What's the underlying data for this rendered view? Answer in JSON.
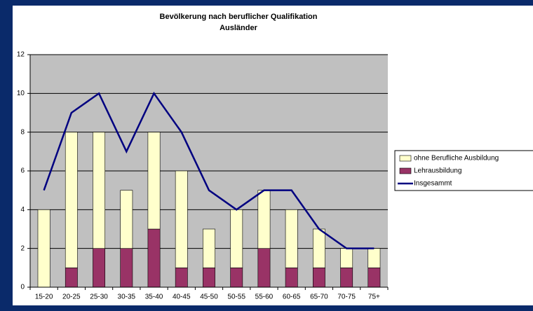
{
  "chart_data": {
    "type": "bar",
    "stacked": true,
    "title": "Bevölkerung nach beruflicher Qualifikation",
    "subtitle": "Ausländer",
    "categories": [
      "15-20",
      "20-25",
      "25-30",
      "30-35",
      "35-40",
      "40-45",
      "45-50",
      "50-55",
      "55-60",
      "60-65",
      "65-70",
      "70-75",
      "75+"
    ],
    "series": [
      {
        "name": "Lehrausbildung",
        "type": "bar",
        "color": "#993366",
        "values": [
          0,
          1,
          2,
          2,
          3,
          1,
          1,
          1,
          2,
          1,
          1,
          1,
          1
        ]
      },
      {
        "name": "ohne Berufliche Ausbildung",
        "type": "bar",
        "color": "#ffffcc",
        "values": [
          4,
          7,
          6,
          3,
          5,
          5,
          2,
          3,
          3,
          3,
          2,
          1,
          1
        ]
      },
      {
        "name": "Insgesammt",
        "type": "line",
        "color": "#000080",
        "values": [
          5,
          9,
          10,
          7,
          10,
          8,
          5,
          4,
          5,
          5,
          3,
          2,
          2
        ]
      }
    ],
    "ylim": [
      0,
      12
    ],
    "yticks": [
      0,
      2,
      4,
      6,
      8,
      10,
      12
    ],
    "grid": true,
    "legend": "right"
  }
}
